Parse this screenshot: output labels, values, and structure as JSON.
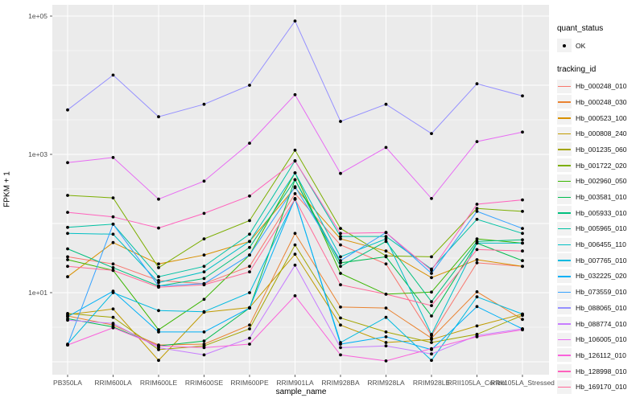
{
  "figure": {
    "background": "#ffffff",
    "panel_background": "#ebebeb",
    "gridline_color": "#ffffff",
    "tick_label_color": "#4d4d4d",
    "point_color": "#000000"
  },
  "legend": {
    "quant_status_title": "quant_status",
    "quant_status_items": [
      {
        "label": "OK",
        "marker": "point"
      }
    ],
    "tracking_id_title": "tracking_id"
  },
  "chart_data": {
    "type": "line",
    "title": "",
    "xlabel": "sample_name",
    "ylabel": "FPKM + 1",
    "y_scale": "log10",
    "ylim": [
      0.65,
      150000
    ],
    "grid": "on",
    "legend_position": "right",
    "y_ticks": [
      {
        "label": "1e+05",
        "value": 100000
      },
      {
        "label": "1e+03",
        "value": 1000
      },
      {
        "label": "1e+01",
        "value": 10
      }
    ],
    "categories": [
      "PB350LA",
      "RRIM600LA",
      "RRIM600LE",
      "RRIM600SE",
      "RRIM600PE",
      "RRIM901LA",
      "RRIM928BA",
      "RRIM928LA",
      "RRIM928LE",
      "RRII105LA_Control",
      "RRII105LA_Stressed"
    ],
    "series": [
      {
        "name": "Hb_000248_010",
        "color": "#F8766D",
        "values": [
          33,
          26,
          15,
          13.5,
          24,
          270,
          49,
          26,
          2.4,
          27,
          24
        ]
      },
      {
        "name": "Hb_000248_030",
        "color": "#EA8331",
        "values": [
          4.6,
          3.4,
          1.75,
          1.8,
          3.4,
          72,
          6.2,
          6.0,
          2.2,
          10.3,
          4.1
        ]
      },
      {
        "name": "Hb_000523_100",
        "color": "#D89000",
        "values": [
          17,
          53,
          26,
          35,
          55,
          330,
          60,
          40,
          16.5,
          30,
          24
        ]
      },
      {
        "name": "Hb_000808_240",
        "color": "#C09B00",
        "values": [
          4.8,
          5.8,
          1.05,
          5.2,
          6.1,
          36,
          3.4,
          1.9,
          2.1,
          3.3,
          4.9
        ]
      },
      {
        "name": "Hb_001235_060",
        "color": "#A3A500",
        "values": [
          5.0,
          4.4,
          1.5,
          1.7,
          3.0,
          49,
          4.3,
          2.7,
          1.9,
          2.5,
          4.7
        ]
      },
      {
        "name": "Hb_001722_020",
        "color": "#7CAE00",
        "values": [
          255,
          235,
          23,
          60,
          110,
          1150,
          85,
          34,
          33,
          165,
          150
        ]
      },
      {
        "name": "Hb_002960_050",
        "color": "#39B600",
        "values": [
          30,
          21,
          2.9,
          8.0,
          35,
          540,
          19,
          9.5,
          10.2,
          60,
          52
        ]
      },
      {
        "name": "Hb_003581_010",
        "color": "#00BB4E",
        "values": [
          4.2,
          3.2,
          1.7,
          2.0,
          6.0,
          430,
          27,
          33,
          4.6,
          52,
          29
        ]
      },
      {
        "name": "Hb_005933_010",
        "color": "#00BF7D",
        "values": [
          43,
          23,
          12.5,
          16,
          45,
          430,
          24,
          55,
          7.4,
          55,
          58
        ]
      },
      {
        "name": "Hb_005965_010",
        "color": "#00C1A3",
        "values": [
          88,
          98,
          17,
          24,
          70,
          810,
          65,
          65,
          22,
          115,
          72
        ]
      },
      {
        "name": "Hb_006455_110",
        "color": "#00BFC4",
        "values": [
          72,
          70,
          14,
          20,
          55,
          540,
          33,
          60,
          2.5,
          52,
          52
        ]
      },
      {
        "name": "Hb_007765_010",
        "color": "#00BAE0",
        "values": [
          1.8,
          10,
          5.5,
          5.3,
          10,
          225,
          1.9,
          4.4,
          1.05,
          8.7,
          4.9
        ]
      },
      {
        "name": "Hb_032225_020",
        "color": "#00B0F6",
        "values": [
          4.5,
          10.5,
          2.7,
          2.7,
          6.0,
          230,
          1.8,
          2.3,
          1.5,
          6.3,
          3.0
        ]
      },
      {
        "name": "Hb_073559_010",
        "color": "#35A2FF",
        "values": [
          1.75,
          98,
          12.5,
          13.5,
          35,
          340,
          29,
          74,
          19,
          150,
          85
        ]
      },
      {
        "name": "Hb_088065_010",
        "color": "#9590FF",
        "values": [
          4400,
          14000,
          3500,
          5300,
          10000,
          85000,
          3000,
          5300,
          2000,
          10500,
          7000
        ]
      },
      {
        "name": "Hb_088774_010",
        "color": "#C77CFF",
        "values": [
          4.0,
          3.6,
          1.6,
          1.26,
          2.2,
          25,
          1.6,
          1.7,
          1.3,
          2.4,
          3.0
        ]
      },
      {
        "name": "Hb_106005_010",
        "color": "#E76BF3",
        "values": [
          760,
          900,
          225,
          410,
          1450,
          7300,
          530,
          1260,
          230,
          1530,
          2100
        ]
      },
      {
        "name": "Hb_126112_010",
        "color": "#FA62DB",
        "values": [
          1.75,
          3.1,
          1.7,
          1.6,
          1.8,
          9,
          1.26,
          1.03,
          1.55,
          2.3,
          2.9
        ]
      },
      {
        "name": "Hb_128998_010",
        "color": "#FF62BC",
        "values": [
          145,
          125,
          86,
          140,
          250,
          800,
          72,
          74,
          21,
          190,
          220
        ]
      },
      {
        "name": "Hb_169170_010",
        "color": "#FF6A98",
        "values": [
          24,
          21,
          12,
          13,
          20,
          225,
          13,
          9.5,
          6.5,
          42,
          40
        ]
      }
    ]
  }
}
